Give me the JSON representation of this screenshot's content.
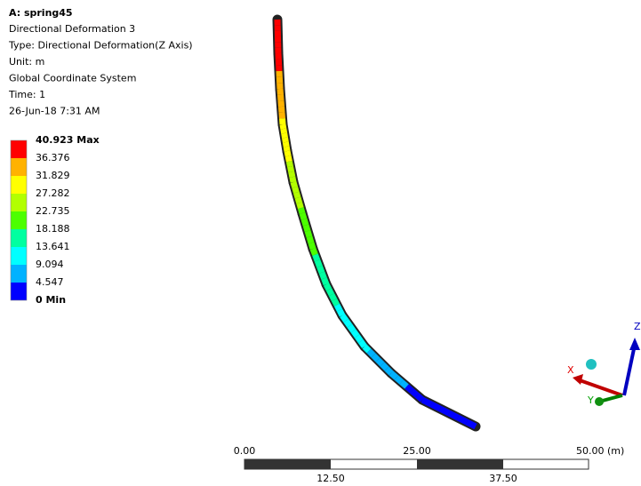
{
  "header": {
    "title": "A: spring45",
    "lines": [
      "Directional Deformation 3",
      "Type: Directional Deformation(Z Axis)",
      "Unit: m",
      "Global Coordinate System",
      "Time: 1",
      "26-Jun-18 7:31 AM"
    ]
  },
  "legend": {
    "labels": [
      "40.923 Max",
      "36.376",
      "31.829",
      "27.282",
      "22.735",
      "18.188",
      "13.641",
      "9.094",
      "4.547",
      "0 Min"
    ],
    "colors": [
      "#ff0000",
      "#ffb200",
      "#ffff00",
      "#b2ff00",
      "#4cff00",
      "#00ffa0",
      "#00ffff",
      "#00b2ff",
      "#0000ff"
    ]
  },
  "scale_bar": {
    "top_labels": [
      "0.00",
      "25.00",
      "50.00 (m)"
    ],
    "bottom_labels": [
      "12.50",
      "37.50"
    ]
  },
  "triad": {
    "x": "X",
    "y": "Y",
    "z": "Z"
  }
}
